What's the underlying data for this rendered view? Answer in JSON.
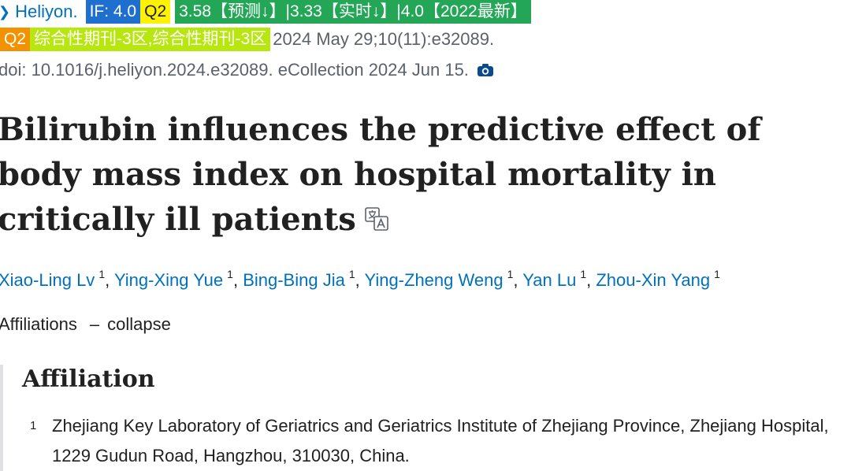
{
  "citation": {
    "journal": "Heliyon.",
    "badges": {
      "impact_factor": "IF: 4.0",
      "quartile": "Q2",
      "if_history": "3.58【预测↓】|3.33【实时↓】|4.0【2022最新】",
      "quartile_2": "Q2",
      "category": "综合性期刊-3区,综合性期刊-3区"
    },
    "pub_info": "2024 May 29;10(11):e32089.",
    "doi_line": "doi: 10.1016/j.heliyon.2024.e32089. eCollection 2024 Jun 15."
  },
  "title": "Bilirubin influences the predictive effect of body mass index on hospital mortality in critically ill patients",
  "authors": [
    {
      "name": "Xiao-Ling Lv",
      "sup": "1",
      "sep": ", "
    },
    {
      "name": "Ying-Xing Yue",
      "sup": "1",
      "sep": ", "
    },
    {
      "name": "Bing-Bing Jia",
      "sup": "1",
      "sep": ", "
    },
    {
      "name": "Ying-Zheng Weng",
      "sup": "1",
      "sep": ", "
    },
    {
      "name": "Yan Lu",
      "sup": "1",
      "sep": ", "
    },
    {
      "name": "Zhou-Xin Yang",
      "sup": "1",
      "sep": ""
    }
  ],
  "affiliations_toggle": {
    "label": "Affiliations",
    "dash": "–",
    "action": "collapse"
  },
  "affiliation": {
    "heading": "Affiliation",
    "items": [
      {
        "num": "1",
        "text": "Zhejiang Key Laboratory of Geriatrics and Geriatrics Institute of Zhejiang Province, Zhejiang Hospital, 1229 Gudun Road, Hangzhou, 310030, China."
      }
    ]
  },
  "icons": {
    "journal_chevron": "chevron-right-icon",
    "snapshot": "camera-icon",
    "translate": "translate-icon"
  },
  "colors": {
    "link": "#0071bc",
    "if_badge": "#1e6fd0",
    "quartile_yellow": "#fff200",
    "history_green": "#23a656",
    "quartile_orange": "#f39200",
    "category_lime": "#b8e60f"
  }
}
